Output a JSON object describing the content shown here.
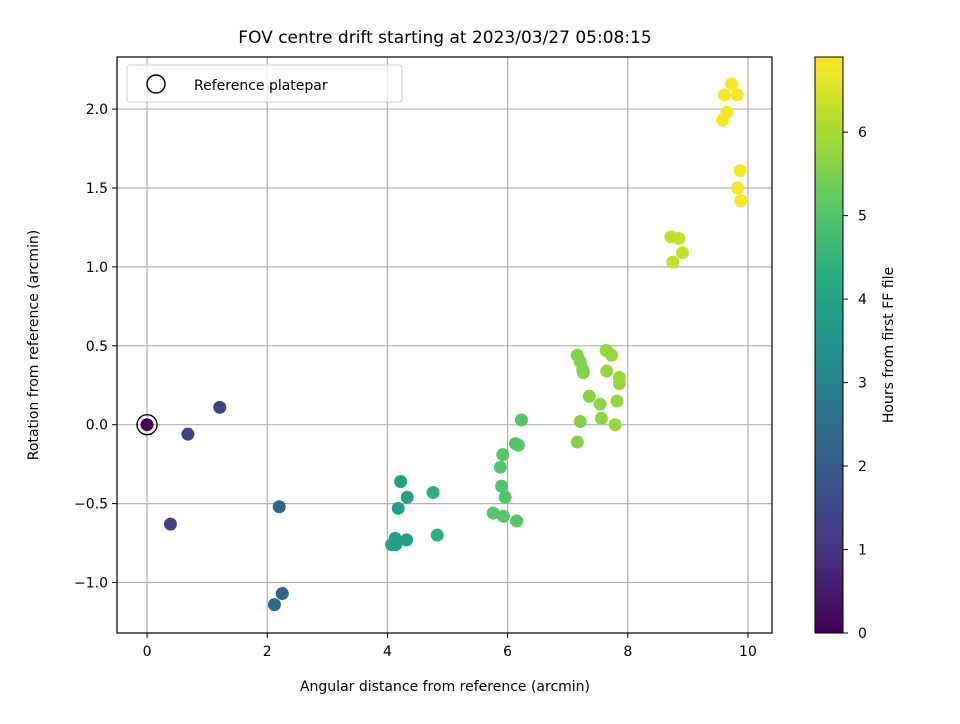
{
  "chart_data": {
    "type": "scatter",
    "title": "FOV centre drift starting at 2023/03/27 05:08:15",
    "xlabel": "Angular distance from reference (arcmin)",
    "ylabel": "Rotation from reference (arcmin)",
    "xlim": [
      -0.5,
      10.4
    ],
    "ylim": [
      -1.32,
      2.33
    ],
    "xticks": [
      0,
      2,
      4,
      6,
      8,
      10
    ],
    "xtick_labels": [
      "0",
      "2",
      "4",
      "6",
      "8",
      "10"
    ],
    "yticks": [
      -1.0,
      -0.5,
      0.0,
      0.5,
      1.0,
      1.5,
      2.0
    ],
    "ytick_labels": [
      "−1.0",
      "−0.5",
      "0.0",
      "0.5",
      "1.0",
      "1.5",
      "2.0"
    ],
    "grid": true,
    "legend": {
      "position": "top-left",
      "label": "Reference platepar"
    },
    "colorbar": {
      "label": "Hours from first FF file",
      "colormap": "viridis",
      "range": [
        0,
        6.9
      ],
      "ticks": [
        0,
        1,
        2,
        3,
        4,
        5,
        6
      ],
      "tick_labels": [
        "0",
        "1",
        "2",
        "3",
        "4",
        "5",
        "6"
      ]
    },
    "reference": {
      "x": 0,
      "y": 0
    },
    "points": [
      {
        "x": 0.0,
        "y": 0.0,
        "c": 0.0
      },
      {
        "x": 0.68,
        "y": -0.06,
        "c": 1.4
      },
      {
        "x": 0.39,
        "y": -0.63,
        "c": 1.4
      },
      {
        "x": 1.21,
        "y": 0.11,
        "c": 1.4
      },
      {
        "x": 2.2,
        "y": -0.52,
        "c": 2.3
      },
      {
        "x": 2.25,
        "y": -1.07,
        "c": 2.3
      },
      {
        "x": 2.12,
        "y": -1.14,
        "c": 2.3
      },
      {
        "x": 4.22,
        "y": -0.36,
        "c": 3.9
      },
      {
        "x": 4.33,
        "y": -0.46,
        "c": 3.9
      },
      {
        "x": 4.18,
        "y": -0.53,
        "c": 3.9
      },
      {
        "x": 4.13,
        "y": -0.72,
        "c": 3.9
      },
      {
        "x": 4.07,
        "y": -0.76,
        "c": 3.9
      },
      {
        "x": 4.14,
        "y": -0.76,
        "c": 3.9
      },
      {
        "x": 4.32,
        "y": -0.73,
        "c": 3.9
      },
      {
        "x": 4.76,
        "y": -0.43,
        "c": 4.4
      },
      {
        "x": 4.83,
        "y": -0.7,
        "c": 4.4
      },
      {
        "x": 6.23,
        "y": 0.03,
        "c": 5.0
      },
      {
        "x": 6.13,
        "y": -0.12,
        "c": 5.0
      },
      {
        "x": 6.18,
        "y": -0.13,
        "c": 5.0
      },
      {
        "x": 5.92,
        "y": -0.19,
        "c": 5.0
      },
      {
        "x": 5.88,
        "y": -0.27,
        "c": 5.0
      },
      {
        "x": 5.9,
        "y": -0.39,
        "c": 5.0
      },
      {
        "x": 5.96,
        "y": -0.46,
        "c": 5.0
      },
      {
        "x": 5.76,
        "y": -0.56,
        "c": 5.0
      },
      {
        "x": 5.93,
        "y": -0.58,
        "c": 5.0
      },
      {
        "x": 6.15,
        "y": -0.61,
        "c": 5.0
      },
      {
        "x": 7.16,
        "y": 0.44,
        "c": 5.6
      },
      {
        "x": 7.21,
        "y": 0.4,
        "c": 5.6
      },
      {
        "x": 7.25,
        "y": 0.35,
        "c": 5.6
      },
      {
        "x": 7.26,
        "y": 0.33,
        "c": 5.6
      },
      {
        "x": 7.64,
        "y": 0.47,
        "c": 5.8
      },
      {
        "x": 7.73,
        "y": 0.44,
        "c": 5.8
      },
      {
        "x": 7.65,
        "y": 0.34,
        "c": 5.8
      },
      {
        "x": 7.86,
        "y": 0.3,
        "c": 5.8
      },
      {
        "x": 7.86,
        "y": 0.26,
        "c": 5.8
      },
      {
        "x": 7.36,
        "y": 0.18,
        "c": 5.6
      },
      {
        "x": 7.54,
        "y": 0.13,
        "c": 5.7
      },
      {
        "x": 7.82,
        "y": 0.15,
        "c": 5.8
      },
      {
        "x": 7.56,
        "y": 0.04,
        "c": 5.7
      },
      {
        "x": 7.21,
        "y": 0.02,
        "c": 5.6
      },
      {
        "x": 7.79,
        "y": 0.0,
        "c": 5.8
      },
      {
        "x": 7.16,
        "y": -0.11,
        "c": 5.6
      },
      {
        "x": 8.72,
        "y": 1.19,
        "c": 6.3
      },
      {
        "x": 8.85,
        "y": 1.18,
        "c": 6.3
      },
      {
        "x": 8.75,
        "y": 1.03,
        "c": 6.3
      },
      {
        "x": 8.91,
        "y": 1.09,
        "c": 6.3
      },
      {
        "x": 9.73,
        "y": 2.16,
        "c": 6.85
      },
      {
        "x": 9.61,
        "y": 2.09,
        "c": 6.85
      },
      {
        "x": 9.82,
        "y": 2.09,
        "c": 6.85
      },
      {
        "x": 9.65,
        "y": 1.98,
        "c": 6.85
      },
      {
        "x": 9.58,
        "y": 1.93,
        "c": 6.85
      },
      {
        "x": 9.87,
        "y": 1.61,
        "c": 6.85
      },
      {
        "x": 9.83,
        "y": 1.5,
        "c": 6.85
      },
      {
        "x": 9.88,
        "y": 1.42,
        "c": 6.85
      }
    ]
  }
}
